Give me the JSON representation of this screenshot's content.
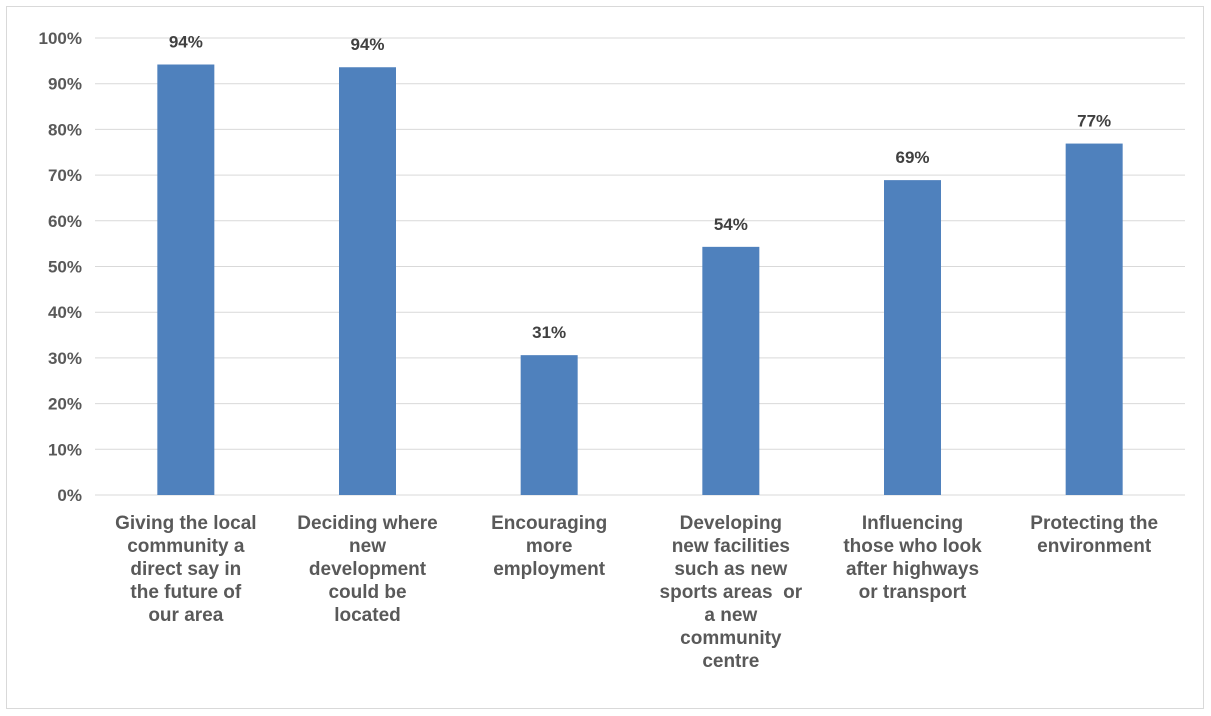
{
  "chart_data": {
    "type": "bar",
    "categories": [
      "Giving the local community a direct say in the future of our area",
      "Deciding where new development could be located",
      "Encouraging more employment",
      "Developing new facilities such as new sports areas  or a new community centre",
      "Influencing those who look after highways or transport",
      "Protecting the environment"
    ],
    "category_lines": [
      [
        "Giving the local",
        "community a",
        "direct say in",
        "the future of",
        "our area"
      ],
      [
        "Deciding where",
        "new",
        "development",
        "could be",
        "located"
      ],
      [
        "Encouraging",
        "more",
        "employment"
      ],
      [
        "Developing",
        "new facilities",
        "such as new",
        "sports areas  or",
        "a new",
        "community",
        "centre"
      ],
      [
        "Influencing",
        "those who look",
        "after highways",
        "or transport"
      ],
      [
        "Protecting the",
        "environment"
      ]
    ],
    "values": [
      94.2,
      93.6,
      30.6,
      54.3,
      68.9,
      76.9
    ],
    "data_labels": [
      "94%",
      "94%",
      "31%",
      "54%",
      "69%",
      "77%"
    ],
    "y_ticks": [
      "0%",
      "10%",
      "20%",
      "30%",
      "40%",
      "50%",
      "60%",
      "70%",
      "80%",
      "90%",
      "100%"
    ],
    "ylim": [
      0,
      100
    ],
    "grid": true,
    "bar_color": "#4f81bd",
    "grid_color": "#d9d9d9",
    "title": "",
    "xlabel": "",
    "ylabel": ""
  }
}
